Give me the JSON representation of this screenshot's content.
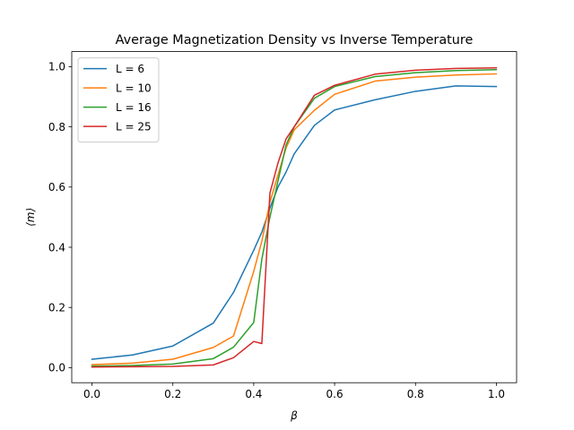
{
  "chart_data": {
    "type": "line",
    "title": "Average Magnetization Density vs Inverse Temperature",
    "xlabel": "β",
    "ylabel": "⟨m⟩",
    "xlim": [
      -0.05,
      1.05
    ],
    "ylim": [
      -0.05,
      1.05
    ],
    "xticks": [
      0.0,
      0.2,
      0.4,
      0.6,
      0.8,
      1.0
    ],
    "yticks": [
      0.0,
      0.2,
      0.4,
      0.6,
      0.8,
      1.0
    ],
    "xtick_labels": [
      "0.0",
      "0.2",
      "0.4",
      "0.6",
      "0.8",
      "1.0"
    ],
    "ytick_labels": [
      "0.0",
      "0.2",
      "0.4",
      "0.6",
      "0.8",
      "1.0"
    ],
    "grid": false,
    "legend_position": "upper-left",
    "series": [
      {
        "name": "L = 6",
        "color": "#1f77b4",
        "x": [
          0.0,
          0.1,
          0.2,
          0.3,
          0.35,
          0.4,
          0.42,
          0.44,
          0.46,
          0.48,
          0.5,
          0.55,
          0.6,
          0.7,
          0.8,
          0.9,
          1.0
        ],
        "y": [
          0.028,
          0.042,
          0.072,
          0.148,
          0.25,
          0.39,
          0.45,
          0.53,
          0.6,
          0.65,
          0.71,
          0.805,
          0.856,
          0.89,
          0.918,
          0.936,
          0.934
        ]
      },
      {
        "name": "L = 10",
        "color": "#ff7f0e",
        "x": [
          0.0,
          0.1,
          0.2,
          0.3,
          0.35,
          0.4,
          0.42,
          0.44,
          0.46,
          0.48,
          0.5,
          0.55,
          0.6,
          0.7,
          0.8,
          0.9,
          1.0
        ],
        "y": [
          0.01,
          0.015,
          0.028,
          0.067,
          0.105,
          0.32,
          0.42,
          0.55,
          0.64,
          0.73,
          0.79,
          0.855,
          0.908,
          0.952,
          0.965,
          0.972,
          0.976
        ]
      },
      {
        "name": "L = 16",
        "color": "#2ca02c",
        "x": [
          0.0,
          0.1,
          0.2,
          0.3,
          0.35,
          0.4,
          0.42,
          0.44,
          0.46,
          0.48,
          0.5,
          0.55,
          0.6,
          0.7,
          0.8,
          0.9,
          1.0
        ],
        "y": [
          0.005,
          0.007,
          0.012,
          0.03,
          0.068,
          0.15,
          0.36,
          0.5,
          0.62,
          0.74,
          0.8,
          0.895,
          0.934,
          0.967,
          0.98,
          0.987,
          0.99
        ]
      },
      {
        "name": "L = 25",
        "color": "#d62728",
        "x": [
          0.0,
          0.1,
          0.2,
          0.3,
          0.35,
          0.4,
          0.42,
          0.44,
          0.46,
          0.48,
          0.5,
          0.55,
          0.6,
          0.7,
          0.8,
          0.9,
          1.0
        ],
        "y": [
          0.002,
          0.003,
          0.004,
          0.009,
          0.033,
          0.087,
          0.08,
          0.58,
          0.68,
          0.76,
          0.8,
          0.905,
          0.938,
          0.975,
          0.988,
          0.994,
          0.996
        ]
      }
    ]
  }
}
